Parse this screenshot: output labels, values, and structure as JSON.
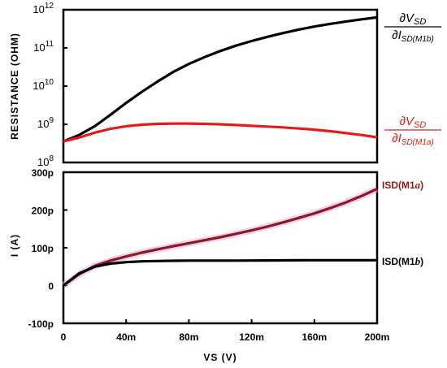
{
  "chart_data": [
    {
      "type": "line",
      "yscale": "log",
      "ylabel": "RESISTANCE (OHM)",
      "ylim_exponent": [
        8,
        12
      ],
      "ytick_exponents": [
        8,
        9,
        10,
        11,
        12
      ],
      "ytick_base": "10",
      "xlim": [
        0,
        200
      ],
      "grid": false,
      "series": [
        {
          "name": "∂VSD / ∂ISD(M1b)",
          "label_num": "∂V",
          "label_num_sub": "SD",
          "label_den": "∂I",
          "label_den_sub": "SD(M1b)",
          "color": "#000000",
          "x": [
            0,
            10,
            20,
            30,
            40,
            50,
            60,
            70,
            80,
            90,
            100,
            110,
            120,
            130,
            140,
            150,
            160,
            170,
            180,
            190,
            200
          ],
          "y_exponent": [
            8.55,
            8.72,
            8.95,
            9.25,
            9.56,
            9.85,
            10.12,
            10.37,
            10.58,
            10.76,
            10.92,
            11.06,
            11.18,
            11.29,
            11.39,
            11.48,
            11.56,
            11.63,
            11.69,
            11.75,
            11.8
          ]
        },
        {
          "name": "∂VSD / ∂ISD(M1a)",
          "label_num": "∂V",
          "label_num_sub": "SD",
          "label_den": "∂I",
          "label_den_sub": "SD(M1a)",
          "color": "#e31b1b",
          "x": [
            0,
            10,
            20,
            30,
            40,
            50,
            60,
            70,
            80,
            90,
            100,
            110,
            120,
            130,
            140,
            150,
            160,
            170,
            180,
            190,
            200
          ],
          "y_exponent": [
            8.55,
            8.65,
            8.78,
            8.88,
            8.95,
            8.99,
            9.01,
            9.02,
            9.02,
            9.01,
            9.0,
            8.98,
            8.96,
            8.94,
            8.92,
            8.89,
            8.86,
            8.82,
            8.77,
            8.72,
            8.66
          ]
        }
      ]
    },
    {
      "type": "line",
      "ylabel": "I (A)",
      "xlabel": "VS (V)",
      "xlim": [
        0,
        200
      ],
      "ylim": [
        -100,
        300
      ],
      "yticks": [
        "-100p",
        "0",
        "100p",
        "200p",
        "300p"
      ],
      "ytick_values": [
        -100,
        0,
        100,
        200,
        300
      ],
      "xticks": [
        "0",
        "40m",
        "80m",
        "120m",
        "160m",
        "200m"
      ],
      "xtick_values": [
        0,
        40,
        80,
        120,
        160,
        200
      ],
      "grid": false,
      "series": [
        {
          "name": "ISD(M1a)",
          "label_main": "ISD(M1",
          "label_var": "a",
          "label_end": ")",
          "color": "#8b1a1a",
          "x": [
            0,
            10,
            20,
            30,
            40,
            50,
            60,
            70,
            80,
            90,
            100,
            110,
            120,
            130,
            140,
            150,
            160,
            170,
            180,
            190,
            200
          ],
          "y": [
            0,
            30,
            52,
            66,
            77,
            87,
            96,
            104,
            112,
            120,
            128,
            137,
            146,
            156,
            167,
            179,
            191,
            205,
            220,
            237,
            256
          ]
        },
        {
          "name": "ISD(M1b)",
          "label_main": "ISD(M1",
          "label_var": "b",
          "label_end": ")",
          "color": "#000000",
          "x": [
            0,
            10,
            20,
            30,
            40,
            50,
            60,
            70,
            80,
            90,
            100,
            110,
            120,
            130,
            140,
            150,
            160,
            170,
            180,
            190,
            200
          ],
          "y": [
            0,
            32,
            50,
            58,
            62,
            64,
            65,
            65.5,
            66,
            66,
            66,
            66,
            66.2,
            66.4,
            66.6,
            66.8,
            67,
            67,
            67,
            67,
            67
          ]
        }
      ]
    }
  ]
}
